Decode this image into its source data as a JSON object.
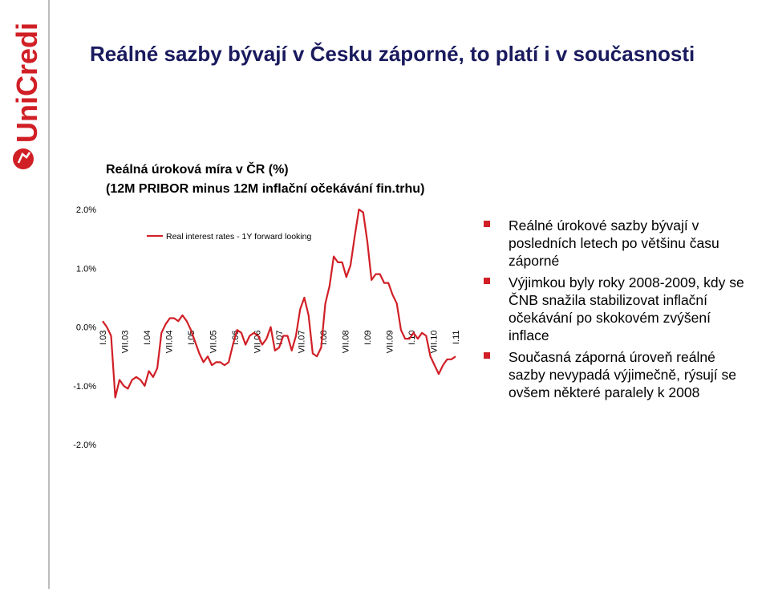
{
  "brand": {
    "logo_text": "UniCredit",
    "accent_color": "#d11f26"
  },
  "slide": {
    "title": "Reálné sazby bývají v Česku záporné, to platí i v současnosti"
  },
  "bullets": [
    "Reálné úrokové sazby bývají v posledních letech po většinu času záporné",
    "Výjimkou byly roky 2008-2009, kdy se ČNB snažila stabilizovat inflační očekávání po skokovém zvýšení inflace",
    "Současná záporná úroveň reálné sazby nevypadá výjimečně, rýsují se ovšem některé paralely k 2008"
  ],
  "chart_data": {
    "type": "line",
    "title_line1": "Reálná úroková míra v ČR (%)",
    "title_line2": "(12M PRIBOR minus 12M inflační očekávání fin.trhu)",
    "legend_label": "Real interest rates - 1Y forward looking",
    "line_color": "#d11f26",
    "y_ticks": [
      "2.0%",
      "1.0%",
      "0.0%",
      "-1.0%",
      "-2.0%"
    ],
    "y_tick_values": [
      2.0,
      1.0,
      0.0,
      -1.0,
      -2.0
    ],
    "ylim": [
      -2.0,
      2.0
    ],
    "x_tick_labels": [
      "I.03",
      "VII.03",
      "I.04",
      "VII.04",
      "I.05",
      "VII.05",
      "I.06",
      "VII.06",
      "I.07",
      "VII.07",
      "I.08",
      "VII.08",
      "I.09",
      "VII.09",
      "I.10",
      "VII.10",
      "I.11"
    ],
    "series": [
      {
        "values": [
          0.1,
          0.0,
          -0.15,
          -1.2,
          -0.9,
          -1.0,
          -1.05,
          -0.9,
          -0.85,
          -0.9,
          -1.0,
          -0.75,
          -0.85,
          -0.7,
          -0.1,
          0.05,
          0.15,
          0.15,
          0.1,
          0.2,
          0.1,
          -0.05,
          -0.25,
          -0.45,
          -0.6,
          -0.5,
          -0.65,
          -0.6,
          -0.6,
          -0.65,
          -0.6,
          -0.3,
          -0.05,
          -0.1,
          -0.3,
          -0.15,
          -0.1,
          -0.15,
          -0.3,
          -0.2,
          0.0,
          -0.4,
          -0.35,
          -0.15,
          -0.15,
          -0.4,
          -0.15,
          0.3,
          0.5,
          0.2,
          -0.45,
          -0.5,
          -0.35,
          0.4,
          0.7,
          1.2,
          1.1,
          1.1,
          0.85,
          1.05,
          1.55,
          2.0,
          1.95,
          1.45,
          0.8,
          0.9,
          0.9,
          0.75,
          0.75,
          0.55,
          0.4,
          -0.05,
          -0.2,
          -0.2,
          -0.1,
          -0.2,
          -0.1,
          -0.15,
          -0.5,
          -0.65,
          -0.8,
          -0.65,
          -0.55,
          -0.55,
          -0.5
        ]
      }
    ],
    "grid": false,
    "legend_position": "top-left"
  }
}
